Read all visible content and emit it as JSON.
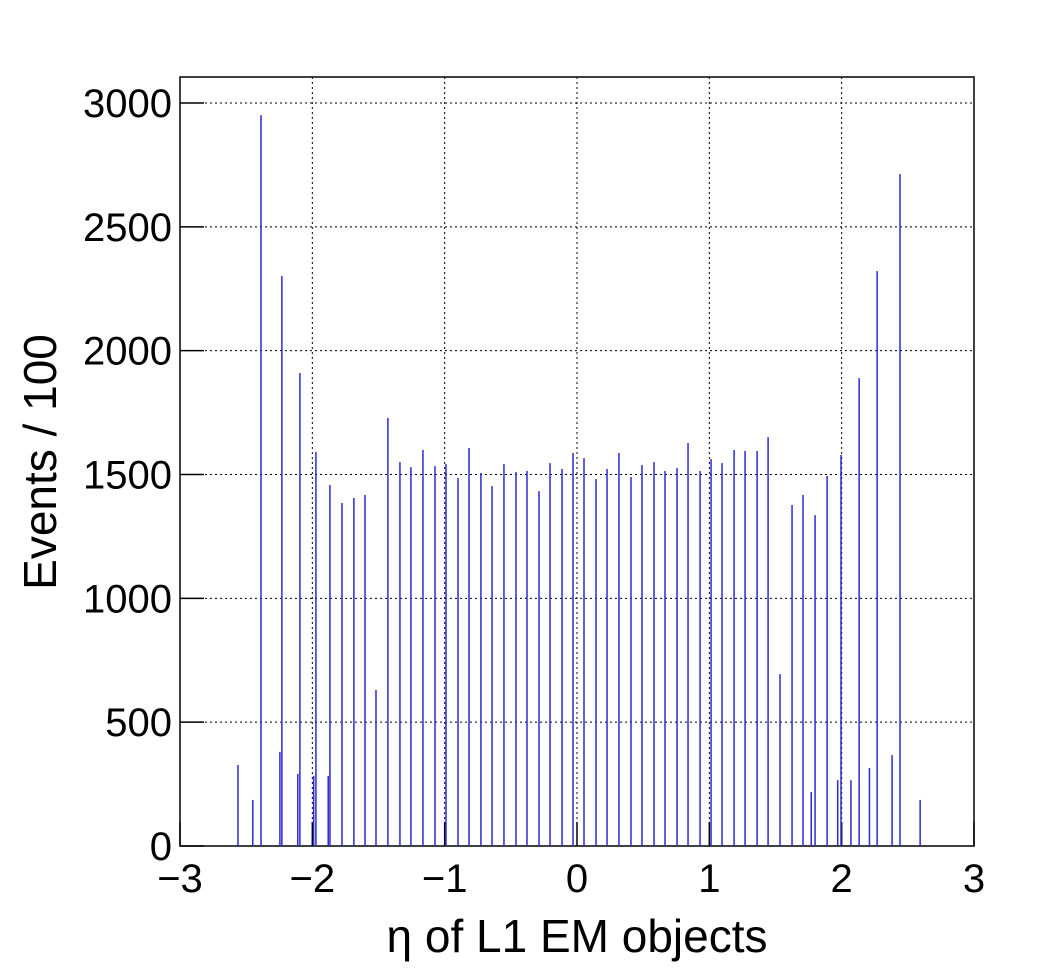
{
  "chart_data": {
    "type": "spike",
    "x_label": "η of L1 EM objects",
    "y_label": "Events / 100",
    "color": "#2b2bd6",
    "grid": true,
    "xlim": [
      -3,
      3
    ],
    "xticks": [
      {
        "value": -3,
        "label": "−3"
      },
      {
        "value": -2,
        "label": "−2"
      },
      {
        "value": -1,
        "label": "−1"
      },
      0,
      1,
      2,
      3
    ],
    "ylim": [
      0,
      3000
    ],
    "yticks": [
      0,
      500,
      1000,
      1500,
      2000,
      2500,
      3000
    ],
    "x": [
      -2.562,
      -2.45,
      -2.388,
      -2.245,
      -2.23,
      -2.11,
      -2.094,
      -1.99,
      -1.973,
      -1.88,
      -1.867,
      -1.776,
      -1.686,
      -1.602,
      -1.519,
      -1.429,
      -1.338,
      -1.255,
      -1.164,
      -1.073,
      -0.99,
      -0.899,
      -0.816,
      -0.726,
      -0.642,
      -0.552,
      -0.461,
      -0.378,
      -0.287,
      -0.204,
      -0.113,
      -0.03,
      0.053,
      0.144,
      0.227,
      0.317,
      0.408,
      0.491,
      0.582,
      0.665,
      0.756,
      0.839,
      0.93,
      1.013,
      1.096,
      1.187,
      1.27,
      1.361,
      1.444,
      1.534,
      1.625,
      1.708,
      1.77,
      1.799,
      1.89,
      1.97,
      1.995,
      2.07,
      2.132,
      2.21,
      2.268,
      2.381,
      2.441,
      2.593
    ],
    "values": [
      327,
      186,
      2951,
      380,
      2301,
      291,
      1910,
      283,
      1591,
      283,
      1457,
      1385,
      1405,
      1417,
      630,
      1728,
      1550,
      1530,
      1599,
      1534,
      1542,
      1486,
      1607,
      1506,
      1453,
      1542,
      1510,
      1514,
      1433,
      1546,
      1522,
      1587,
      1566,
      1482,
      1522,
      1587,
      1490,
      1538,
      1550,
      1514,
      1526,
      1627,
      1514,
      1562,
      1546,
      1599,
      1595,
      1595,
      1651,
      694,
      1377,
      1417,
      218,
      1336,
      1494,
      266,
      1579,
      266,
      1889,
      315,
      2321,
      367,
      2713,
      186
    ]
  }
}
